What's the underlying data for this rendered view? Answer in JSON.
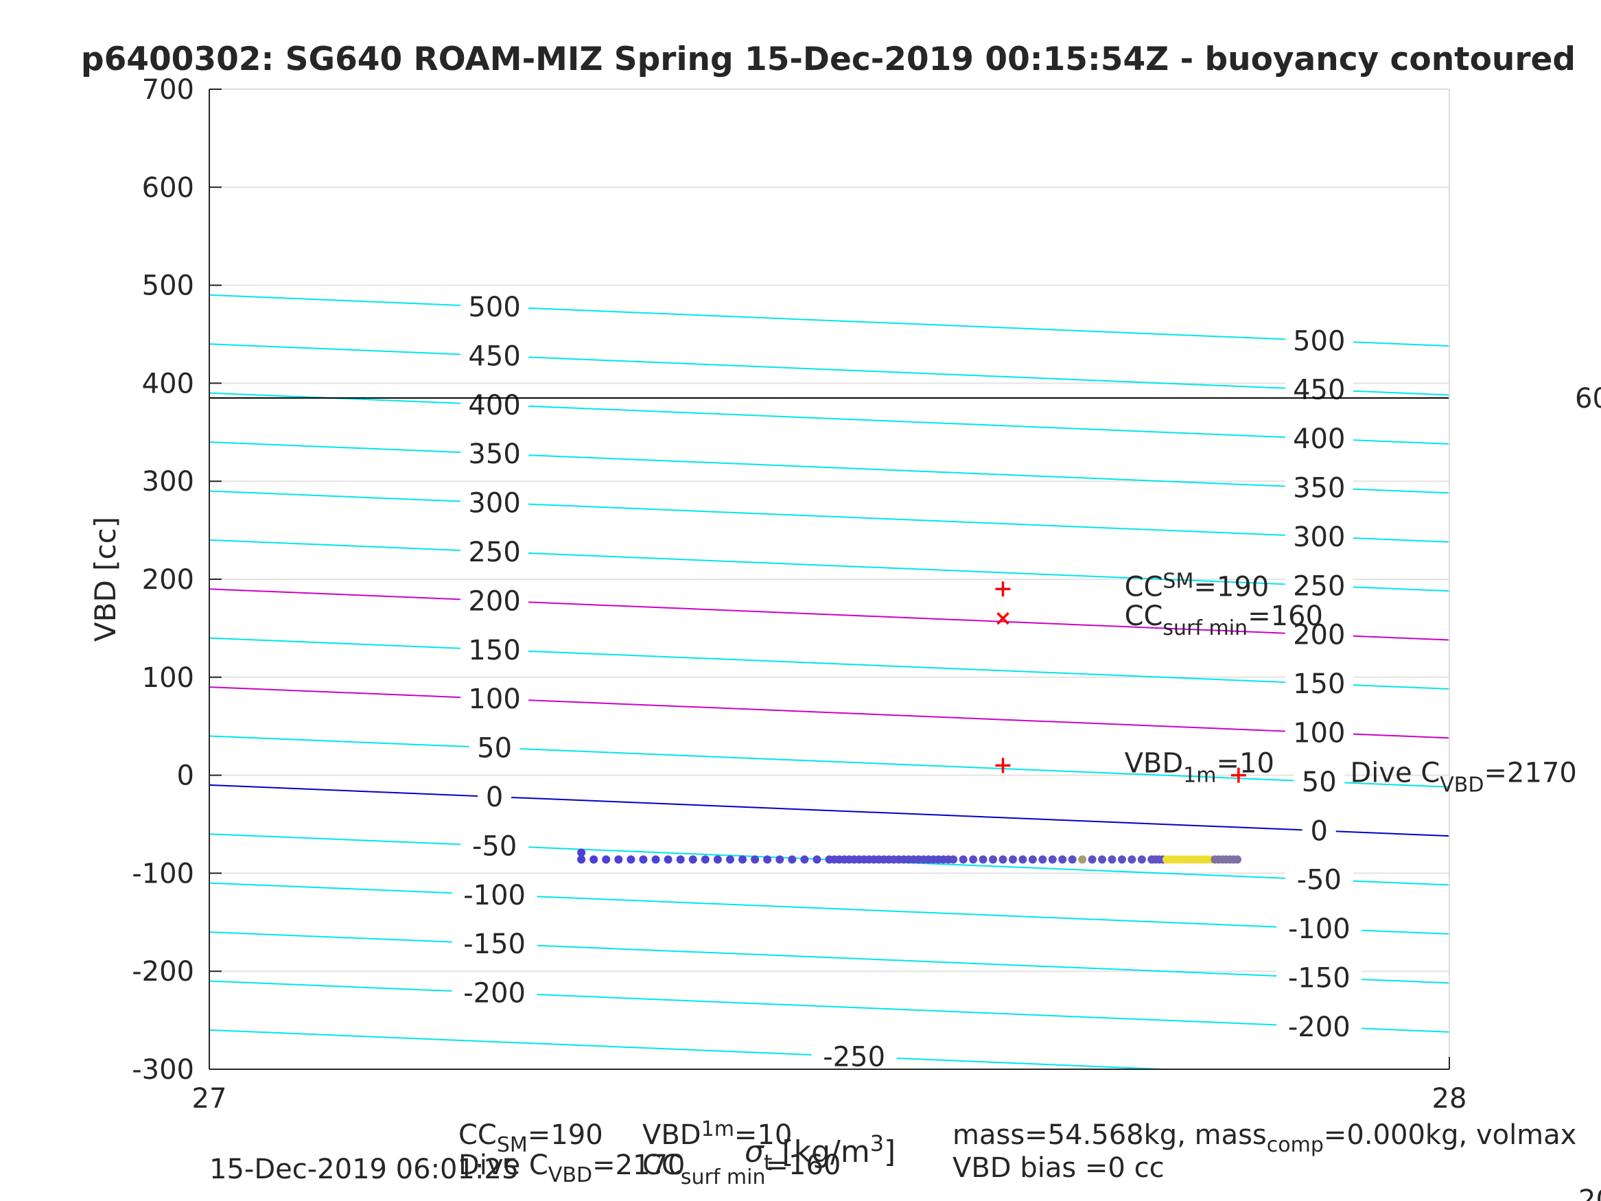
{
  "chart_data": {
    "type": "scatter",
    "title": "p6400302: SG640 ROAM-MIZ Spring 15-Dec-2019 00:15:54Z - buoyancy contoured",
    "xlabel": "σ_t [kg/m^3]",
    "ylabel": "VBD [cc]",
    "xlim": [
      27,
      28
    ],
    "ylim": [
      -300,
      700
    ],
    "xticks": [
      "27",
      "28"
    ],
    "yticks": [
      "-300",
      "-200",
      "-100",
      "0",
      "100",
      "200",
      "300",
      "400",
      "500",
      "600",
      "700"
    ],
    "grid": true,
    "contour_color": "#00e5ee",
    "highlight_contour_color": "#cc00cc",
    "zero_contour_color": "#0000cc",
    "contour_lines": [
      {
        "left": 490,
        "right": 438,
        "color": "cyan",
        "label_left": "500",
        "label_right": "500"
      },
      {
        "left": 440,
        "right": 388,
        "color": "cyan",
        "label_left": "450",
        "label_right": "450"
      },
      {
        "left": 390,
        "right": 338,
        "color": "cyan",
        "label_left": "400",
        "label_right": "400"
      },
      {
        "left": 340,
        "right": 288,
        "color": "cyan",
        "label_left": "350",
        "label_right": "350"
      },
      {
        "left": 290,
        "right": 238,
        "color": "cyan",
        "label_left": "300",
        "label_right": "300"
      },
      {
        "left": 240,
        "right": 188,
        "color": "cyan",
        "label_left": "250",
        "label_right": "250"
      },
      {
        "left": 190,
        "right": 138,
        "color": "magenta",
        "label_left": "200",
        "label_right": "200"
      },
      {
        "left": 140,
        "right": 88,
        "color": "cyan",
        "label_left": "150",
        "label_right": "150"
      },
      {
        "left": 90,
        "right": 38,
        "color": "magenta",
        "label_left": "100",
        "label_right": "100"
      },
      {
        "left": 40,
        "right": -12,
        "color": "cyan",
        "label_left": "50",
        "label_right": "50"
      },
      {
        "left": -10,
        "right": -62,
        "color": "blue",
        "label_left": "0",
        "label_right": "0"
      },
      {
        "left": -60,
        "right": -112,
        "color": "cyan",
        "label_left": "-50",
        "label_right": "-50"
      },
      {
        "left": -110,
        "right": -162,
        "color": "cyan",
        "label_left": "-100",
        "label_right": "-100"
      },
      {
        "left": -160,
        "right": -212,
        "color": "cyan",
        "label_left": "-150",
        "label_right": "-150"
      },
      {
        "left": -210,
        "right": -262,
        "color": "cyan",
        "label_left": "-200",
        "label_right": "-200"
      },
      {
        "left": -260,
        "right": -312,
        "color": "cyan",
        "label_left": "-250",
        "label_right": ""
      }
    ],
    "reference_line": {
      "y": 385,
      "color": "#000000",
      "label": "60"
    },
    "scatter": {
      "y": -86,
      "x_start": 27.3,
      "x_end": 27.83,
      "colors_low": "#4b3fd8",
      "colors_high": "#f5e62a",
      "outlier": {
        "x": 27.3,
        "y": -79
      }
    },
    "markers": [
      {
        "x": 27.64,
        "y": 190,
        "symbol": "+",
        "color": "#ff0000"
      },
      {
        "x": 27.64,
        "y": 160,
        "symbol": "x",
        "color": "#ff0000"
      },
      {
        "x": 27.64,
        "y": 10,
        "symbol": "+",
        "color": "#ff0000"
      },
      {
        "x": 27.83,
        "y": 0,
        "symbol": "+",
        "color": "#ff0000"
      }
    ],
    "annotations": [
      {
        "main": "CC",
        "sub": "SM",
        "rest": "=190",
        "x": 27.738,
        "y": 190
      },
      {
        "main": "CC",
        "sub": "surf min",
        "rest": "=160",
        "x": 27.738,
        "y": 160
      },
      {
        "main": "VBD",
        "sub": "1m",
        "rest": "=10",
        "x": 27.738,
        "y": 10
      },
      {
        "main": "Dive C",
        "sub": "VBD",
        "rest": "=2170",
        "x": 27.92,
        "y": 0
      }
    ]
  },
  "footer": {
    "cc_sm_prefix": "CC",
    "cc_sm_sub": "SM",
    "cc_sm_rest": "=190",
    "vbd1m_prefix": "VBD",
    "vbd1m_sub": "1m",
    "vbd1m_rest": "=10",
    "dive_prefix": "Dive C",
    "dive_sub": "VBD",
    "dive_rest": "=2170",
    "ccsurf_prefix": "CC",
    "ccsurf_sub": "surf min",
    "ccsurf_rest": "=160",
    "timestamp": "15-Dec-2019 06:01:25",
    "mass_text_a": "mass=54.568kg, mass",
    "mass_sub": "comp",
    "mass_text_b": "=0.000kg, volmax",
    "vbd_bias": "VBD bias =0 cc",
    "edge_fragment": "20"
  }
}
